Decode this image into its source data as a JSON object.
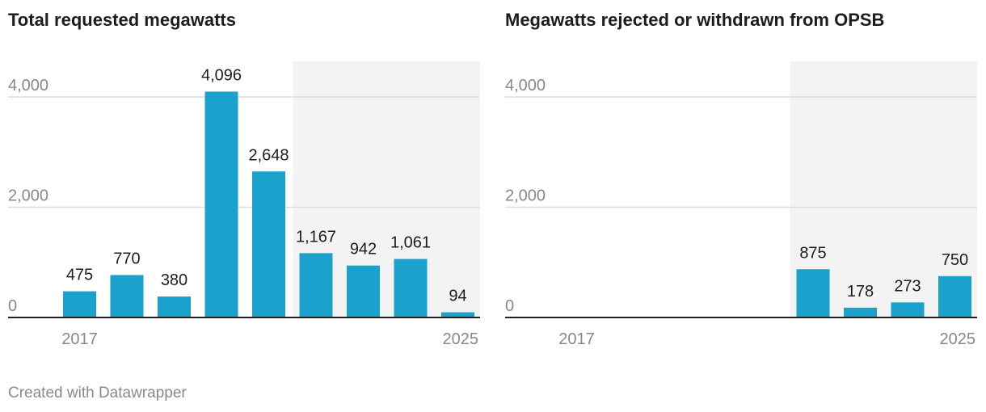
{
  "footer": "Created with Datawrapper",
  "chart_data": [
    {
      "type": "bar",
      "title": "Total requested megawatts",
      "x": [
        2017,
        2018,
        2019,
        2020,
        2021,
        2022,
        2023,
        2024,
        2025
      ],
      "values": [
        475,
        770,
        380,
        4096,
        2648,
        1167,
        942,
        1061,
        94
      ],
      "value_labels": [
        "475",
        "770",
        "380",
        "4,096",
        "2,648",
        "1,167",
        "942",
        "1,061",
        "94"
      ],
      "x_tick_labels": [
        {
          "x": 2017,
          "label": "2017"
        },
        {
          "x": 2025,
          "label": "2025"
        }
      ],
      "y_ticks": [
        0,
        2000,
        4000
      ],
      "y_tick_labels": [
        "0",
        "2,000",
        "4,000"
      ],
      "ylim": [
        0,
        4000
      ],
      "highlight_range": [
        2022,
        2025
      ],
      "xlabel": "",
      "ylabel": "",
      "grid": true,
      "colors": {
        "bar": "#1aa1cc",
        "highlight_bg": "#f3f3f3",
        "grid": "#dcdcdc",
        "axis": "#222222"
      }
    },
    {
      "type": "bar",
      "title": "Megawatts rejected or withdrawn from OPSB",
      "x": [
        2017,
        2018,
        2019,
        2020,
        2021,
        2022,
        2023,
        2024,
        2025
      ],
      "values": [
        null,
        null,
        null,
        null,
        null,
        875,
        178,
        273,
        750
      ],
      "value_labels": [
        "",
        "",
        "",
        "",
        "",
        "875",
        "178",
        "273",
        "750"
      ],
      "x_tick_labels": [
        {
          "x": 2017,
          "label": "2017"
        },
        {
          "x": 2025,
          "label": "2025"
        }
      ],
      "y_ticks": [
        0,
        2000,
        4000
      ],
      "y_tick_labels": [
        "0",
        "2,000",
        "4,000"
      ],
      "ylim": [
        0,
        4000
      ],
      "highlight_range": [
        2022,
        2025
      ],
      "xlabel": "",
      "ylabel": "",
      "grid": true,
      "colors": {
        "bar": "#1aa1cc",
        "highlight_bg": "#f3f3f3",
        "grid": "#dcdcdc",
        "axis": "#222222"
      }
    }
  ]
}
